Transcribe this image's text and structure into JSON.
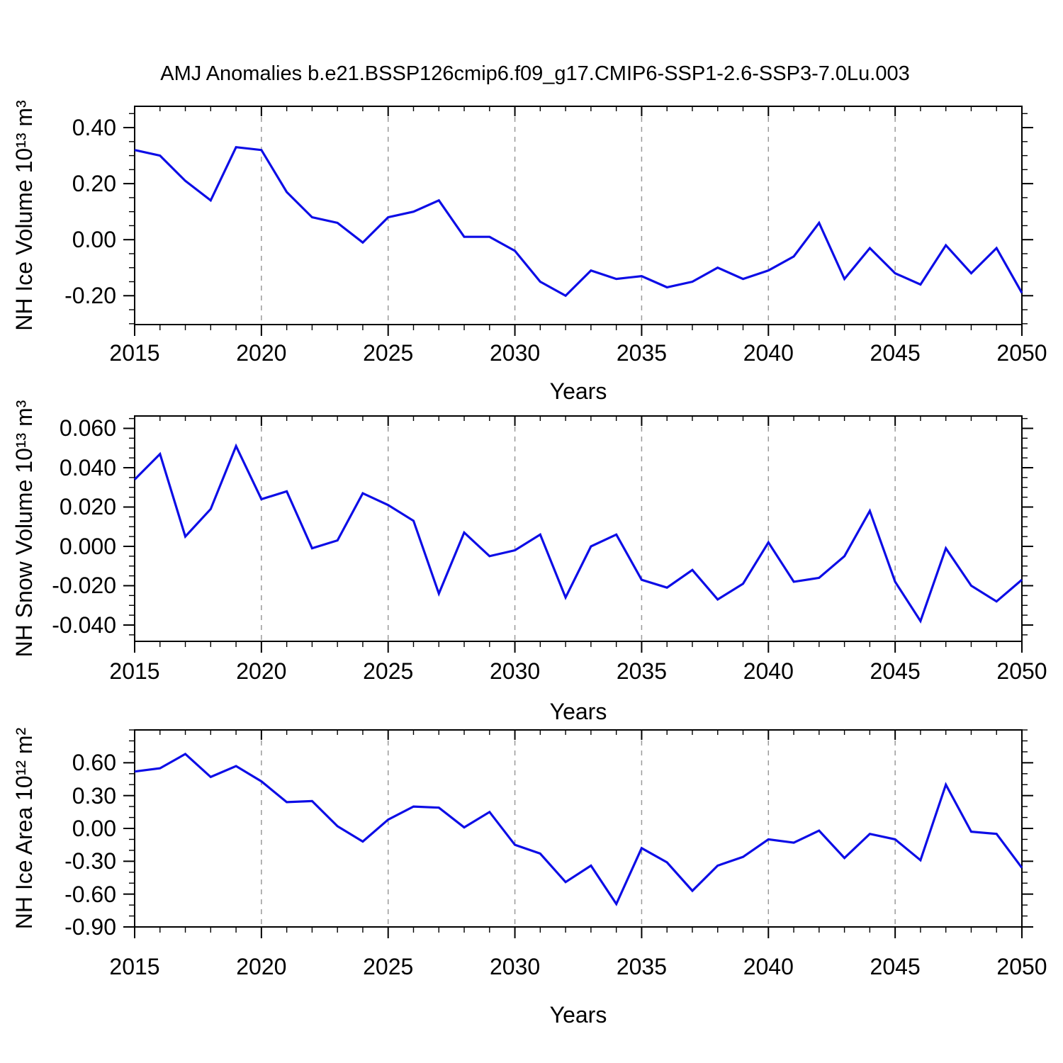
{
  "page": {
    "title": "AMJ Anomalies b.e21.BSSP126cmip6.f09_g17.CMIP6-SSP1-2.6-SSP3-7.0Lu.003",
    "background": "#ffffff"
  },
  "style": {
    "line_color": "#0d0de6",
    "axis_color": "#000000",
    "grid_color": "#9a9a9a"
  },
  "chart_data": [
    {
      "type": "line",
      "ylabel": "NH Ice Volume 10¹³ m³",
      "xlabel": "Years",
      "legend": "none",
      "grid": "x-dashed",
      "xlim": [
        2015,
        2050
      ],
      "ylim": [
        -0.303,
        0.476
      ],
      "ytick_labels": [
        "0.40",
        "0.20",
        "0.00",
        "-0.20"
      ],
      "ytick_values": [
        0.4,
        0.2,
        0.0,
        -0.2
      ],
      "y_minor_step": 0.05,
      "xtick_labels": [
        "2015",
        "2020",
        "2025",
        "2030",
        "2035",
        "2040",
        "2045",
        "2050"
      ],
      "xtick_values": [
        2015,
        2020,
        2025,
        2030,
        2035,
        2040,
        2045,
        2050
      ],
      "x_minor_step": 1,
      "grid_x": [
        2020,
        2025,
        2030,
        2035,
        2040,
        2045
      ],
      "x": [
        2015,
        2016,
        2017,
        2018,
        2019,
        2020,
        2021,
        2022,
        2023,
        2024,
        2025,
        2026,
        2027,
        2028,
        2029,
        2030,
        2031,
        2032,
        2033,
        2034,
        2035,
        2036,
        2037,
        2038,
        2039,
        2040,
        2041,
        2042,
        2043,
        2044,
        2045,
        2046,
        2047,
        2048,
        2049,
        2050
      ],
      "values": [
        0.32,
        0.3,
        0.21,
        0.14,
        0.33,
        0.32,
        0.17,
        0.08,
        0.06,
        -0.01,
        0.08,
        0.1,
        0.14,
        0.01,
        0.01,
        -0.04,
        -0.15,
        -0.2,
        -0.11,
        -0.14,
        -0.13,
        -0.17,
        -0.15,
        -0.1,
        -0.14,
        -0.11,
        -0.06,
        0.06,
        -0.14,
        -0.03,
        -0.12,
        -0.16,
        -0.02,
        -0.12,
        -0.03,
        -0.19
      ]
    },
    {
      "type": "line",
      "ylabel": "NH Snow Volume 10¹³ m³",
      "xlabel": "Years",
      "legend": "none",
      "grid": "x-dashed",
      "xlim": [
        2015,
        2050
      ],
      "ylim": [
        -0.0483,
        0.0663
      ],
      "ytick_labels": [
        "0.060",
        "0.040",
        "0.020",
        "0.000",
        "-0.020",
        "-0.040"
      ],
      "ytick_values": [
        0.06,
        0.04,
        0.02,
        0.0,
        -0.02,
        -0.04
      ],
      "y_minor_step": 0.005,
      "xtick_labels": [
        "2015",
        "2020",
        "2025",
        "2030",
        "2035",
        "2040",
        "2045",
        "2050"
      ],
      "xtick_values": [
        2015,
        2020,
        2025,
        2030,
        2035,
        2040,
        2045,
        2050
      ],
      "x_minor_step": 1,
      "grid_x": [
        2020,
        2025,
        2030,
        2035,
        2040,
        2045
      ],
      "x": [
        2015,
        2016,
        2017,
        2018,
        2019,
        2020,
        2021,
        2022,
        2023,
        2024,
        2025,
        2026,
        2027,
        2028,
        2029,
        2030,
        2031,
        2032,
        2033,
        2034,
        2035,
        2036,
        2037,
        2038,
        2039,
        2040,
        2041,
        2042,
        2043,
        2044,
        2045,
        2046,
        2047,
        2048,
        2049,
        2050
      ],
      "values": [
        0.034,
        0.047,
        0.005,
        0.019,
        0.051,
        0.024,
        0.028,
        -0.001,
        0.003,
        0.027,
        0.021,
        0.013,
        -0.024,
        0.007,
        -0.005,
        -0.002,
        0.006,
        -0.026,
        0.0,
        0.006,
        -0.017,
        -0.021,
        -0.012,
        -0.027,
        -0.019,
        0.002,
        -0.018,
        -0.016,
        -0.005,
        0.018,
        -0.018,
        -0.038,
        -0.001,
        -0.02,
        -0.028,
        -0.017
      ]
    },
    {
      "type": "line",
      "ylabel": "NH Ice Area 10¹² m²",
      "xlabel": "Years",
      "legend": "none",
      "grid": "x-dashed",
      "xlim": [
        2015,
        2050
      ],
      "ylim": [
        -0.9,
        0.9
      ],
      "ytick_labels": [
        "0.60",
        "0.30",
        "0.00",
        "-0.30",
        "-0.60",
        "-0.90"
      ],
      "ytick_values": [
        0.6,
        0.3,
        0.0,
        -0.3,
        -0.6,
        -0.9
      ],
      "y_minor_step": 0.1,
      "xtick_labels": [
        "2015",
        "2020",
        "2025",
        "2030",
        "2035",
        "2040",
        "2045",
        "2050"
      ],
      "xtick_values": [
        2015,
        2020,
        2025,
        2030,
        2035,
        2040,
        2045,
        2050
      ],
      "x_minor_step": 1,
      "grid_x": [
        2020,
        2025,
        2030,
        2035,
        2040,
        2045
      ],
      "x": [
        2015,
        2016,
        2017,
        2018,
        2019,
        2020,
        2021,
        2022,
        2023,
        2024,
        2025,
        2026,
        2027,
        2028,
        2029,
        2030,
        2031,
        2032,
        2033,
        2034,
        2035,
        2036,
        2037,
        2038,
        2039,
        2040,
        2041,
        2042,
        2043,
        2044,
        2045,
        2046,
        2047,
        2048,
        2049,
        2050
      ],
      "values": [
        0.52,
        0.55,
        0.68,
        0.47,
        0.57,
        0.43,
        0.24,
        0.25,
        0.02,
        -0.12,
        0.08,
        0.2,
        0.19,
        0.01,
        0.15,
        -0.15,
        -0.23,
        -0.49,
        -0.34,
        -0.69,
        -0.18,
        -0.31,
        -0.57,
        -0.34,
        -0.26,
        -0.1,
        -0.13,
        -0.02,
        -0.27,
        -0.05,
        -0.1,
        -0.29,
        0.4,
        -0.03,
        -0.05,
        -0.36
      ]
    }
  ]
}
